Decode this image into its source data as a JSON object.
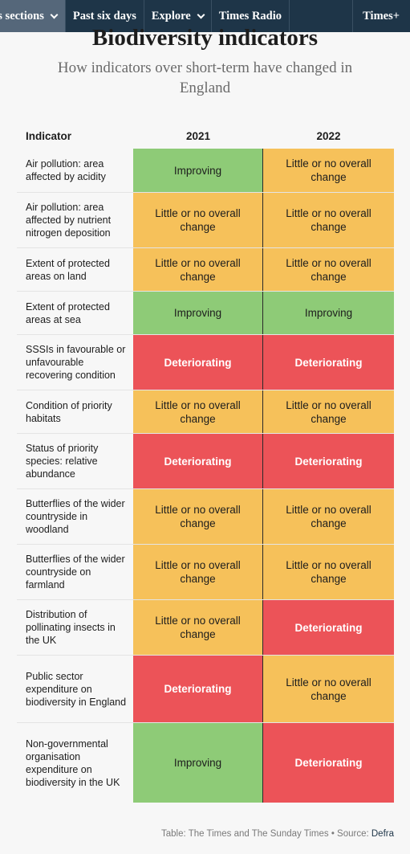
{
  "nav": {
    "items": [
      {
        "label": "y's sections",
        "dropdown": true
      },
      {
        "label": "Past six days",
        "dropdown": false
      },
      {
        "label": "Explore",
        "dropdown": true
      },
      {
        "label": "Times Radio",
        "dropdown": false
      }
    ],
    "right_label": "Times+"
  },
  "page": {
    "title": "Biodiversity indicators",
    "subtitle": "How indicators over short-term have changed in England"
  },
  "table": {
    "headers": {
      "indicator": "Indicator",
      "col1": "2021",
      "col2": "2022"
    },
    "rows": [
      {
        "indicator": "Air pollution: area affected by acidity",
        "y2021": "Improving",
        "y2022": "Little or no overall change"
      },
      {
        "indicator": "Air pollution: area affected by nutrient nitrogen deposition",
        "y2021": "Little or no overall change",
        "y2022": "Little or no overall change"
      },
      {
        "indicator": "Extent of protected areas on land",
        "y2021": "Little or no overall change",
        "y2022": "Little or no overall change"
      },
      {
        "indicator": "Extent of protected areas at sea",
        "y2021": "Improving",
        "y2022": "Improving"
      },
      {
        "indicator": "SSSIs in favourable or unfavourable recovering condition",
        "y2021": "Deteriorating",
        "y2022": "Deteriorating"
      },
      {
        "indicator": "Condition of priority habitats",
        "y2021": "Little or no overall change",
        "y2022": "Little or no overall change"
      },
      {
        "indicator": "Status of priority species: relative abundance",
        "y2021": "Deteriorating",
        "y2022": "Deteriorating"
      },
      {
        "indicator": "Butterflies of the wider countryside in woodland",
        "y2021": "Little or no overall change",
        "y2022": "Little or no overall change"
      },
      {
        "indicator": "Butterflies of the wider countryside on farmland",
        "y2021": "Little or no overall change",
        "y2022": "Little or no overall change"
      },
      {
        "indicator": "Distribution of pollinating insects in the UK",
        "y2021": "Little or no overall change",
        "y2022": "Deteriorating"
      },
      {
        "indicator": "Public sector expenditure on biodiversity in England",
        "y2021": "Deteriorating",
        "y2022": "Little or no overall change"
      },
      {
        "indicator": "Non-governmental organisation expenditure on biodiversity in the UK",
        "y2021": "Improving",
        "y2022": "Deteriorating"
      }
    ]
  },
  "status_colors": {
    "Improving": "#8ecb77",
    "Little or no overall change": "#f6c15a",
    "Deteriorating": "#ec5358"
  },
  "footer": {
    "credit": "Table: The Times and The Sunday Times • Source: ",
    "source": "Defra"
  }
}
